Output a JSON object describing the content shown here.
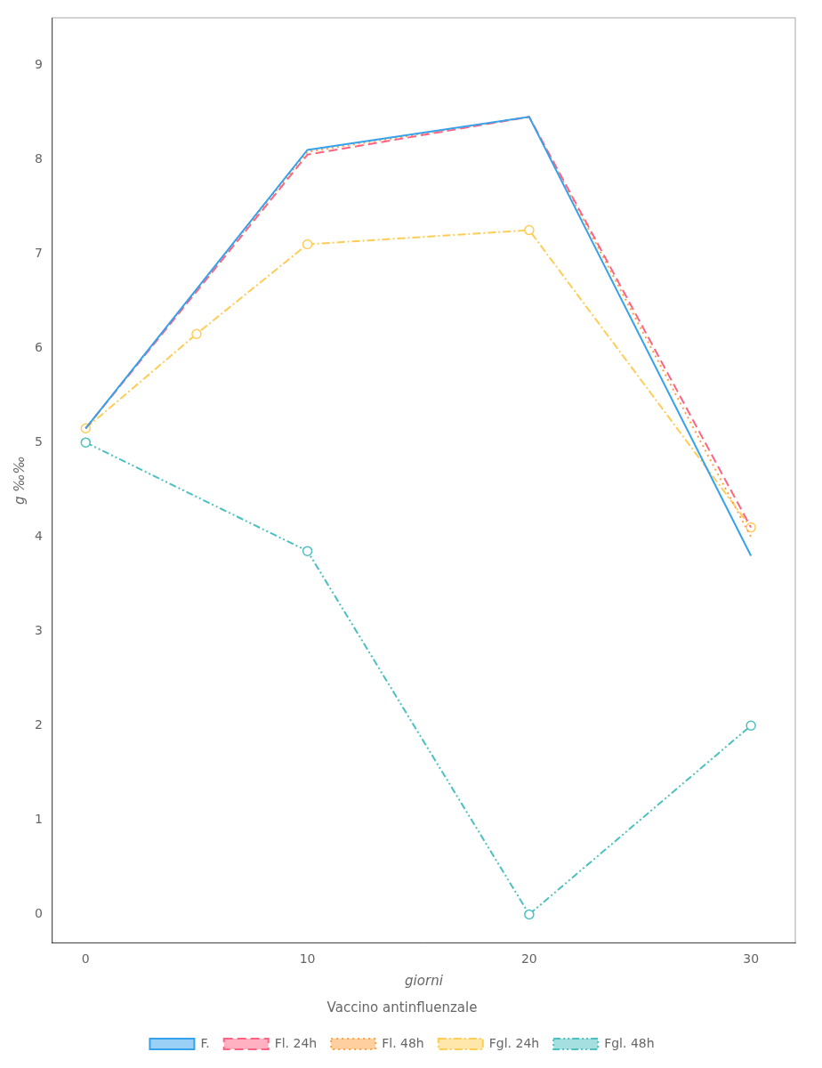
{
  "chart_data": {
    "type": "line",
    "title": "Vaccino antinfluenzale",
    "xlabel": "giorni",
    "ylabel": "g ‰‰",
    "xlim": [
      -1.5,
      32
    ],
    "ylim": [
      -0.3,
      9.5
    ],
    "xticks": [
      0,
      10,
      20,
      30
    ],
    "yticks": [
      0,
      1,
      2,
      3,
      4,
      5,
      6,
      7,
      8,
      9
    ],
    "grid": false,
    "legend": "bottom",
    "series": [
      {
        "name": "F.",
        "x": [
          0,
          10,
          20,
          30
        ],
        "values": [
          5.15,
          8.1,
          8.45,
          3.8
        ],
        "line_style": "solid",
        "marker": "none"
      },
      {
        "name": "Fl. 24h",
        "x": [
          0,
          10,
          20,
          30
        ],
        "values": [
          5.15,
          8.05,
          8.45,
          4.1
        ],
        "line_style": "dashed",
        "marker": "none"
      },
      {
        "name": "Fl. 48h",
        "x": [
          0,
          10,
          20,
          30
        ],
        "values": [
          5.15,
          8.08,
          8.45,
          4.0
        ],
        "line_style": "dotted",
        "marker": "none"
      },
      {
        "name": "Fgl. 24h",
        "x": [
          0,
          5,
          10,
          20,
          30
        ],
        "values": [
          5.15,
          6.15,
          7.1,
          7.25,
          4.1
        ],
        "line_style": "dashdot",
        "marker": "circle"
      },
      {
        "name": "Fgl. 48h",
        "x": [
          0,
          10,
          20,
          30
        ],
        "values": [
          5.0,
          3.85,
          0.0,
          2.0
        ],
        "line_style": "dashdotdot",
        "marker": "circle"
      }
    ]
  }
}
